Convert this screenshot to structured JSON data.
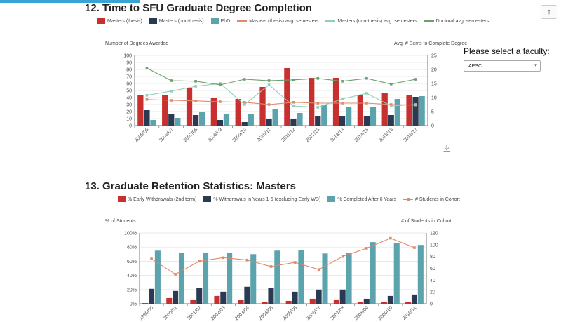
{
  "sections": {
    "s1_title": "12. Time to SFU Graduate Degree Completion",
    "s2_title": "13. Graduate Retention Statistics: Masters"
  },
  "faculty": {
    "label": "Please select a faculty:",
    "selected": "APSC"
  },
  "icons": {
    "scroll_up": "arrow-up-icon",
    "download": "download-icon",
    "dropdown": "caret-down-icon"
  },
  "colors": {
    "red": "#c82f2f",
    "navy": "#2b3a52",
    "teal": "#5ba3ad",
    "orange": "#e08a6b",
    "mint": "#8fd1b5",
    "green": "#6a9f6e"
  },
  "chart_data": [
    {
      "type": "bar",
      "ylabel": "Number of Degrees Awarded",
      "y2label": "Avg. # Sems to Complete Degree",
      "ylim": [
        0,
        100
      ],
      "y2lim": [
        0,
        25
      ],
      "yticks": [
        "0",
        "10",
        "20",
        "30",
        "40",
        "50",
        "60",
        "70",
        "80",
        "90",
        "100"
      ],
      "y2ticks": [
        "0",
        "5",
        "10",
        "15",
        "20",
        "25"
      ],
      "categories": [
        "2005/06",
        "2006/07",
        "2007/08",
        "2008/09",
        "2009/10",
        "2010/11",
        "2011/12",
        "2012/13",
        "2013/14",
        "2014/15",
        "2015/16",
        "2016/17"
      ],
      "bar_series": [
        {
          "name": "Masters (thesis)",
          "color": "#c82f2f",
          "values": [
            44,
            44,
            53,
            40,
            38,
            55,
            82,
            68,
            68,
            43,
            47,
            44
          ]
        },
        {
          "name": "Masters (non-thesis)",
          "color": "#2b3a52",
          "values": [
            22,
            16,
            15,
            8,
            5,
            10,
            9,
            14,
            13,
            14,
            15,
            41
          ]
        },
        {
          "name": "PhD",
          "color": "#5ba3ad",
          "values": [
            8,
            11,
            20,
            16,
            17,
            24,
            18,
            29,
            27,
            26,
            38,
            42
          ]
        }
      ],
      "line_series": [
        {
          "name": "Masters (thesis) avg. semesters",
          "color": "#e08a6b",
          "values": [
            9.3,
            9,
            8.8,
            8.5,
            8.3,
            7.5,
            8.3,
            8,
            8,
            8,
            7.5,
            7.3
          ]
        },
        {
          "name": "Masters (non-thesis) avg. semesters",
          "color": "#8fd1b5",
          "values": [
            10.8,
            12.3,
            14,
            15,
            7.5,
            14.5,
            7,
            6.5,
            9.5,
            11.5,
            7,
            7.5
          ]
        },
        {
          "name": "Doctoral avg. semesters",
          "color": "#6a9f6e",
          "values": [
            20.5,
            16,
            15.8,
            14.5,
            16.5,
            16,
            16.3,
            16.8,
            15.8,
            16.8,
            14.8,
            16.5
          ]
        }
      ]
    },
    {
      "type": "bar",
      "ylabel": "% of Students",
      "y2label": "# of Students in Cohort",
      "ylim": [
        0,
        100
      ],
      "y2lim": [
        0,
        120
      ],
      "yticks": [
        "0%",
        "20%",
        "40%",
        "60%",
        "80%",
        "100%"
      ],
      "y2ticks": [
        "0",
        "20",
        "40",
        "60",
        "80",
        "100",
        "120"
      ],
      "categories": [
        "1999/00",
        "2000/01",
        "2001/02",
        "2002/03",
        "2003/04",
        "2004/05",
        "2005/06",
        "2006/07",
        "2007/08",
        "2008/09",
        "2009/10",
        "2010/11"
      ],
      "bar_series": [
        {
          "name": "% Early Withdrawals (2nd term)",
          "color": "#c82f2f",
          "values": [
            1,
            8,
            6,
            11,
            5,
            3,
            4,
            7,
            6,
            3,
            3,
            2
          ]
        },
        {
          "name": "% Withdrawals in Years 1-6 (excluding Early WD)",
          "color": "#2b3a52",
          "values": [
            21,
            18,
            22,
            17,
            24,
            22,
            17,
            20,
            20,
            7,
            11,
            13
          ]
        },
        {
          "name": "% Completed After 6 Years",
          "color": "#5ba3ad",
          "values": [
            75,
            72,
            72,
            72,
            70,
            75,
            76,
            71,
            72,
            87,
            86,
            83
          ]
        }
      ],
      "line_series": [
        {
          "name": "# Students in Cohort",
          "color": "#e08a6b",
          "values": [
            76,
            50,
            72,
            78,
            74,
            63,
            70,
            58,
            80,
            94,
            111,
            95
          ]
        }
      ]
    }
  ]
}
